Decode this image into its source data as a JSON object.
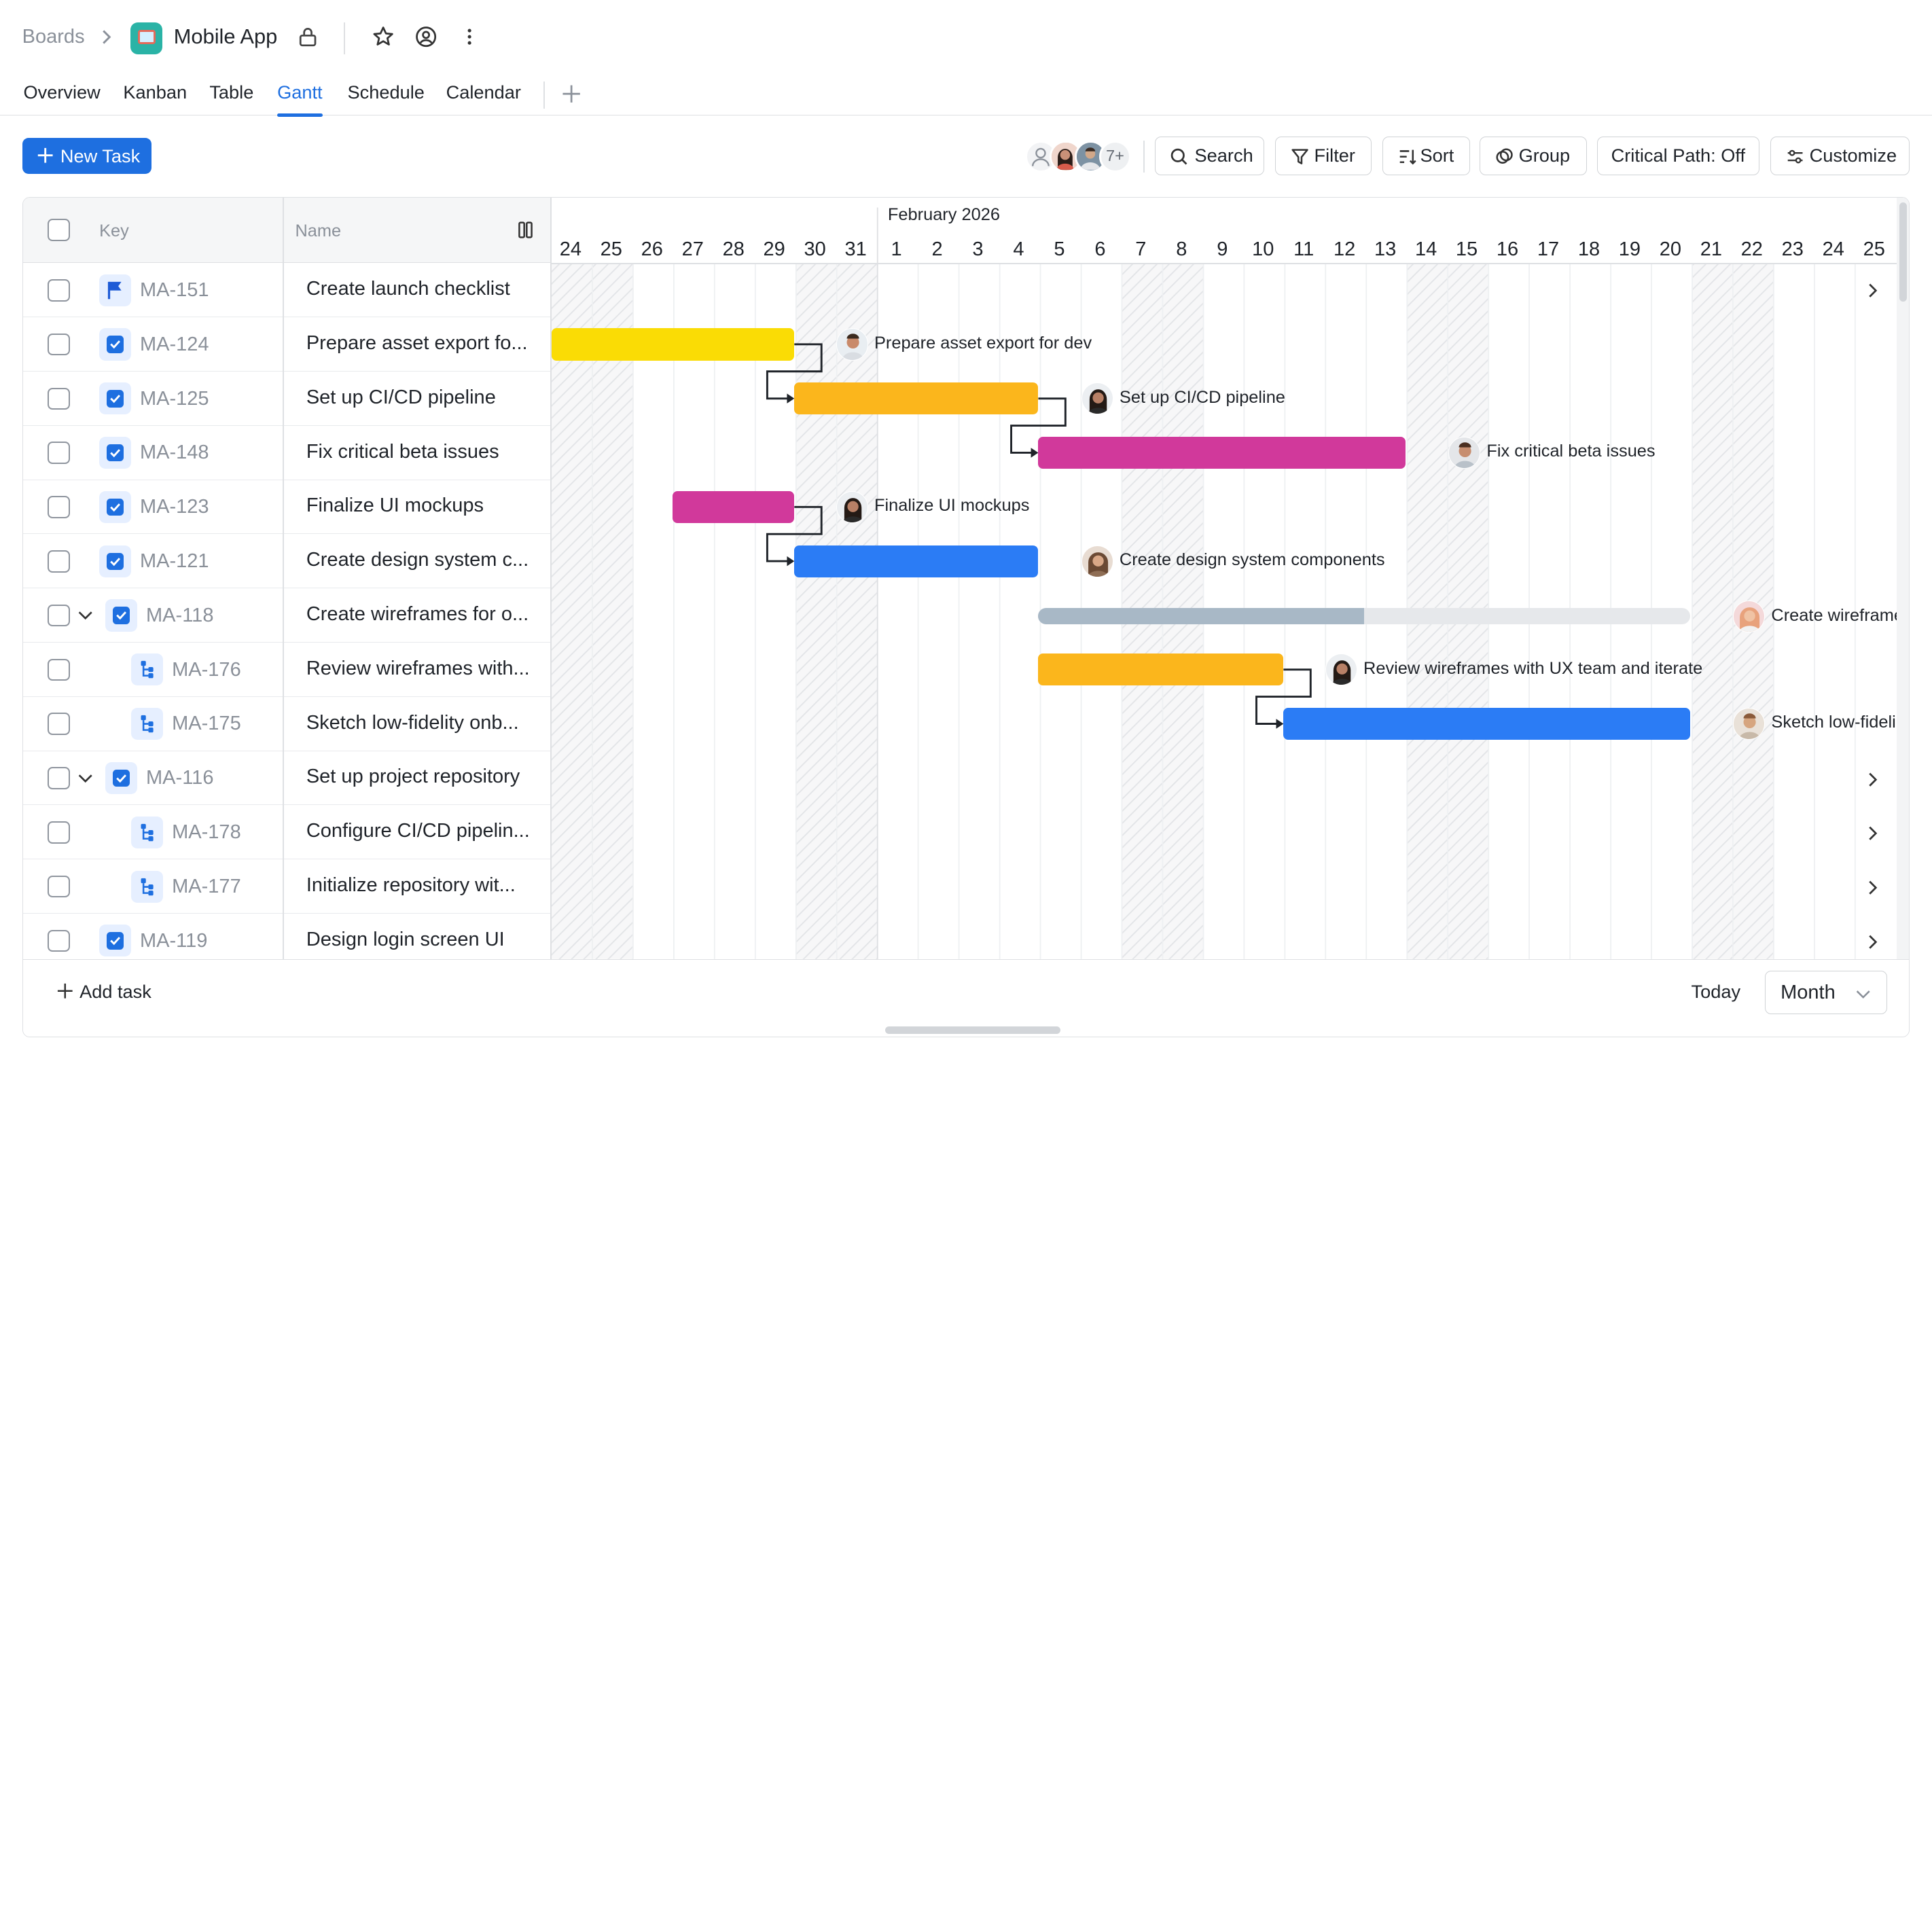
{
  "header": {
    "breadcrumb_root": "Boards",
    "app_title": "Mobile App"
  },
  "tabs": [
    {
      "label": "Overview"
    },
    {
      "label": "Kanban"
    },
    {
      "label": "Table"
    },
    {
      "label": "Gantt",
      "active": true
    },
    {
      "label": "Schedule"
    },
    {
      "label": "Calendar"
    }
  ],
  "toolbar": {
    "new_task": "New Task",
    "avatar_more": "7+",
    "search": "Search",
    "filter": "Filter",
    "sort": "Sort",
    "group": "Group",
    "critical_path": "Critical Path: Off",
    "customize": "Customize"
  },
  "table": {
    "col_key": "Key",
    "col_name": "Name",
    "rows": [
      {
        "key": "MA-151",
        "name": "Create launch checklist",
        "type": "milestone-flag-icon"
      },
      {
        "key": "MA-124",
        "name": "Prepare asset export fo...",
        "type": "task-checkbox-icon"
      },
      {
        "key": "MA-125",
        "name": "Set up CI/CD pipeline",
        "type": "task-checkbox-icon"
      },
      {
        "key": "MA-148",
        "name": "Fix critical beta issues",
        "type": "task-checkbox-icon"
      },
      {
        "key": "MA-123",
        "name": "Finalize UI mockups",
        "type": "task-checkbox-icon"
      },
      {
        "key": "MA-121",
        "name": "Create design system c...",
        "type": "task-checkbox-icon"
      },
      {
        "key": "MA-118",
        "name": "Create wireframes for o...",
        "type": "task-checkbox-icon"
      },
      {
        "key": "MA-176",
        "name": "Review wireframes with...",
        "type": "subtask-icon"
      },
      {
        "key": "MA-175",
        "name": "Sketch low-fidelity onb...",
        "type": "subtask-icon"
      },
      {
        "key": "MA-116",
        "name": "Set up project repository",
        "type": "task-checkbox-icon"
      },
      {
        "key": "MA-178",
        "name": "Configure CI/CD pipelin...",
        "type": "subtask-icon"
      },
      {
        "key": "MA-177",
        "name": "Initialize repository wit...",
        "type": "subtask-icon"
      },
      {
        "key": "MA-119",
        "name": "Design login screen UI",
        "type": "task-checkbox-icon"
      }
    ]
  },
  "gantt": {
    "month_label": "February 2026",
    "days": [
      "24",
      "25",
      "26",
      "27",
      "28",
      "29",
      "30",
      "31",
      "1",
      "2",
      "3",
      "4",
      "5",
      "6",
      "7",
      "8",
      "9",
      "10",
      "11",
      "12",
      "13",
      "14",
      "15",
      "16",
      "17",
      "18",
      "19",
      "20",
      "21",
      "22",
      "23",
      "24",
      "25"
    ],
    "bar_labels": {
      "ma124": "Prepare asset export for dev",
      "ma125": "Set up CI/CD pipeline",
      "ma148": "Fix critical beta issues",
      "ma123": "Finalize UI mockups",
      "ma121": "Create design system components",
      "ma118": "Create wireframes",
      "ma176": "Review wireframes with UX team and iterate",
      "ma175": "Sketch low-fideli"
    },
    "colors": {
      "yellow": "#fadc05",
      "orange": "#fbb61c",
      "magenta": "#d1399b",
      "blue": "#2b7cf5",
      "progress": "#a8b8c6",
      "track": "#e6e8eb"
    },
    "ma118_progress": 0.5
  },
  "footer": {
    "add_task": "Add task",
    "today": "Today",
    "scale": "Month"
  }
}
